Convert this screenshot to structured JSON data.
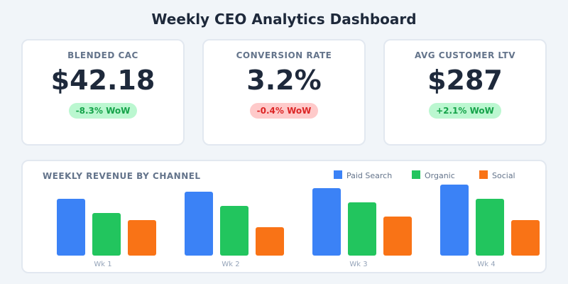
{
  "title": "Weekly CEO Analytics Dashboard",
  "kpis": [
    {
      "label": "BLENDED CAC",
      "value": "$42.18",
      "change": "-8.3% WoW",
      "trend": "good"
    },
    {
      "label": "CONVERSION RATE",
      "value": "3.2%",
      "change": "-0.4% WoW",
      "trend": "bad"
    },
    {
      "label": "AVG CUSTOMER LTV",
      "value": "$287",
      "change": "+2.1% WoW",
      "trend": "good"
    }
  ],
  "chart_data": {
    "type": "bar",
    "title": "WEEKLY REVENUE BY CHANNEL",
    "categories": [
      "Wk 1",
      "Wk 2",
      "Wk 3",
      "Wk 4"
    ],
    "series": [
      {
        "name": "Paid Search",
        "color": "#3b82f6",
        "values": [
          80,
          90,
          95,
          100
        ]
      },
      {
        "name": "Organic",
        "color": "#22c55e",
        "values": [
          60,
          70,
          75,
          80
        ]
      },
      {
        "name": "Social",
        "color": "#f97316",
        "values": [
          50,
          40,
          55,
          50
        ]
      }
    ],
    "ylim": [
      0,
      100
    ],
    "grid": false,
    "legend": "bottom-left"
  }
}
